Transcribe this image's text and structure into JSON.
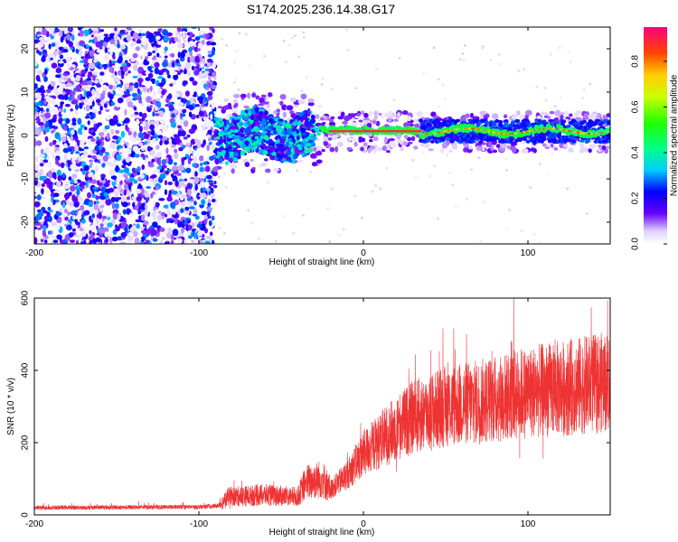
{
  "figure": {
    "title": "S174.2025.236.14.38.G17"
  },
  "chart_data": [
    {
      "type": "heatmap",
      "xlabel": "Height of straight line (km)",
      "ylabel": "Frequency (Hz)",
      "xlim": [
        -200,
        150
      ],
      "ylim": [
        -25,
        25
      ],
      "xticks": [
        -200,
        -100,
        0,
        100
      ],
      "yticks": [
        -20,
        -10,
        0,
        10,
        20
      ],
      "colorbar": {
        "label": "Normalized spectral amplitude",
        "range": [
          0,
          0.95
        ],
        "ticks": [
          0.0,
          0.2,
          0.4,
          0.6,
          0.8
        ],
        "tick_labels": [
          "0.0",
          "0.2",
          "0.4",
          "0.6",
          "0.8"
        ]
      },
      "regions": [
        {
          "x_range": [
            -200,
            -90
          ],
          "description": "broadband noise, amplitude 0.1-0.3"
        },
        {
          "x_range": [
            -90,
            -30
          ],
          "center_freq_hz": 0,
          "description": "noisy signal near 0 Hz, amplitude 0.2-0.4"
        },
        {
          "x_range": [
            -20,
            35
          ],
          "center_freq_hz": 1,
          "description": "strong tone near 1 Hz, amplitude 0.8-0.9"
        },
        {
          "x_range": [
            35,
            150
          ],
          "center_freq_hz": 1,
          "description": "tone near 0-2 Hz, amplitude 0.3-0.9"
        }
      ]
    },
    {
      "type": "line",
      "xlabel": "Height of straight line (km)",
      "ylabel": "SNR (10 * v/v)",
      "xlim": [
        -200,
        150
      ],
      "ylim": [
        0,
        600
      ],
      "xticks": [
        -200,
        -100,
        0,
        100
      ],
      "yticks": [
        0,
        200,
        400,
        600
      ],
      "series": [
        {
          "color": "#ee3333",
          "trend_x": [
            -200,
            -100,
            -88,
            -82,
            -60,
            -40,
            -35,
            -25,
            -20,
            -10,
            0,
            20,
            30,
            50,
            80,
            100,
            120,
            150
          ],
          "trend_y": [
            20,
            22,
            25,
            50,
            55,
            50,
            90,
            100,
            70,
            110,
            170,
            240,
            270,
            300,
            320,
            340,
            350,
            370
          ]
        }
      ]
    }
  ]
}
